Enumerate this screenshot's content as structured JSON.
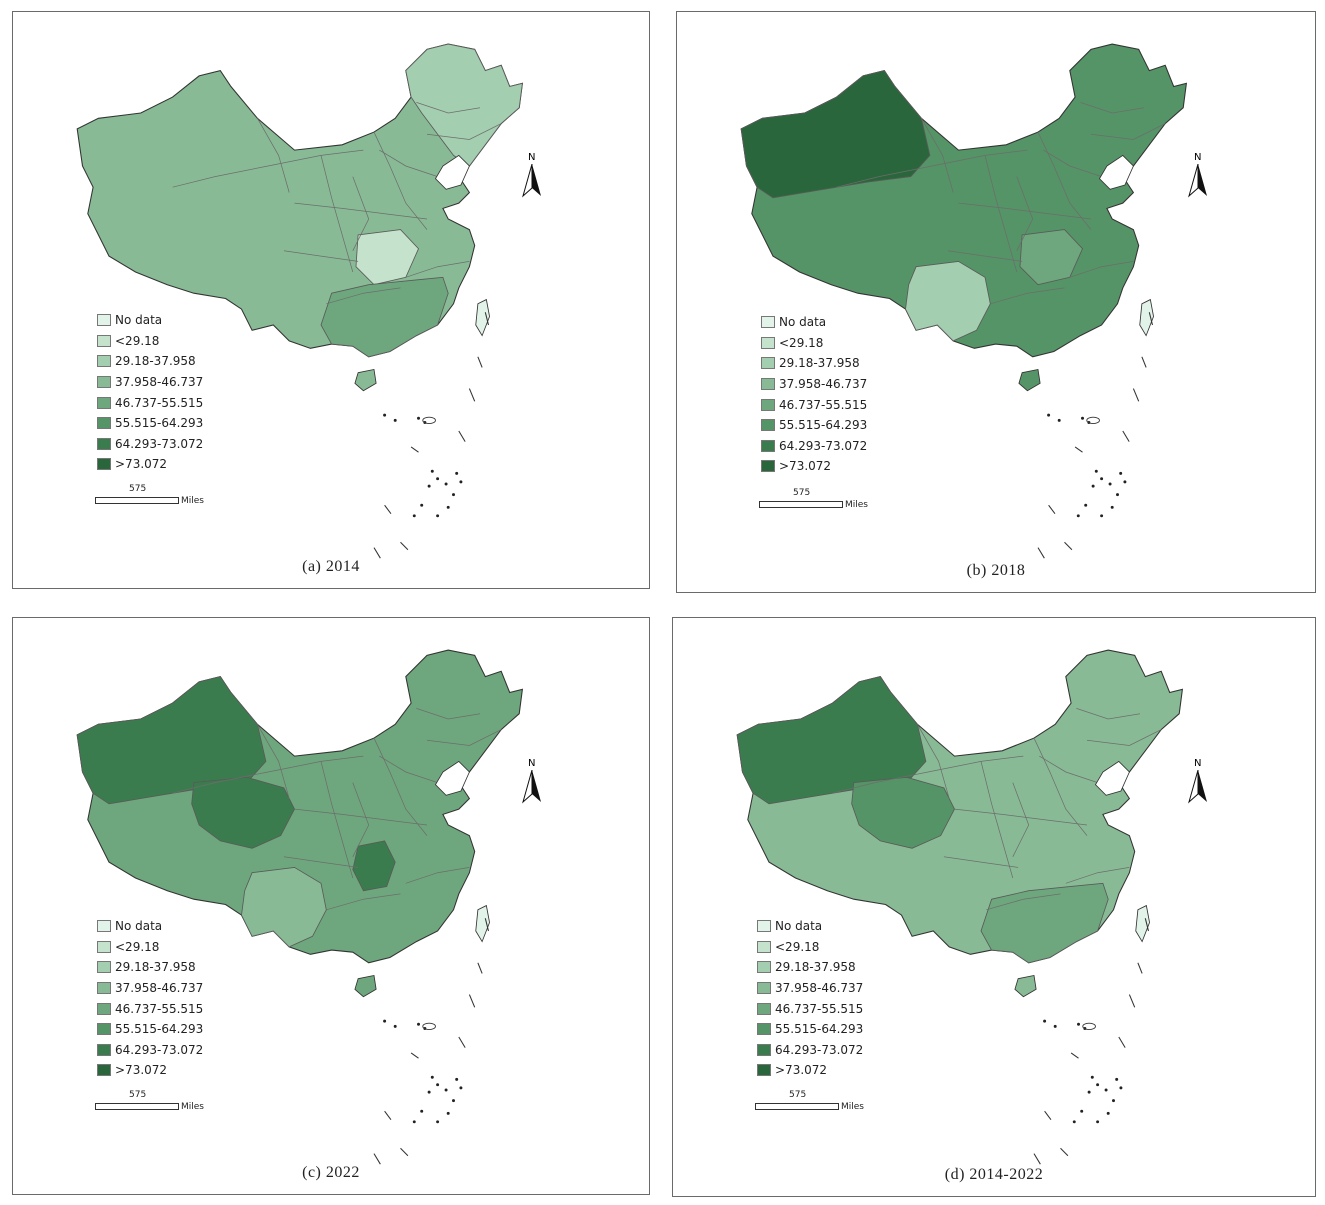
{
  "legend": {
    "items": [
      {
        "label": "No data",
        "color": "#e2f3e9"
      },
      {
        "label": "<29.18",
        "color": "#c4e2cc"
      },
      {
        "label": "29.18-37.958",
        "color": "#a3ceaf"
      },
      {
        "label": "37.958-46.737",
        "color": "#88bb95"
      },
      {
        "label": "46.737-55.515",
        "color": "#6ea77d"
      },
      {
        "label": "55.515-64.293",
        "color": "#559466"
      },
      {
        "label": "64.293-73.072",
        "color": "#3b7c4e"
      },
      {
        "label": ">73.072",
        "color": "#2a663c"
      }
    ]
  },
  "scale": {
    "value": "575",
    "unit": "Miles"
  },
  "north_label": "N",
  "panels": [
    {
      "caption": "(a)  2014",
      "fills": {
        "base": "#88bb95",
        "northeast": "#a3ceaf",
        "center": "#c4e2cc",
        "south": "#6ea77d",
        "taiwan": "#e2f3e9"
      }
    },
    {
      "caption": "(b)  2018",
      "fills": {
        "base": "#559466",
        "northwest": "#2a663c",
        "southwest": "#a3ceaf",
        "center": "#6ea77d",
        "taiwan": "#e2f3e9"
      }
    },
    {
      "caption": "(c)  2022",
      "fills": {
        "base": "#6ea77d",
        "northwest": "#3b7c4e",
        "qinghai": "#3b7c4e",
        "hunan": "#3b7c4e",
        "southwest": "#88bb95",
        "taiwan": "#e2f3e9"
      }
    },
    {
      "caption": "(d)  2014-2022",
      "fills": {
        "base": "#88bb95",
        "northwest": "#3b7c4e",
        "qinghai": "#559466",
        "south": "#6ea77d",
        "taiwan": "#e2f3e9"
      }
    }
  ]
}
